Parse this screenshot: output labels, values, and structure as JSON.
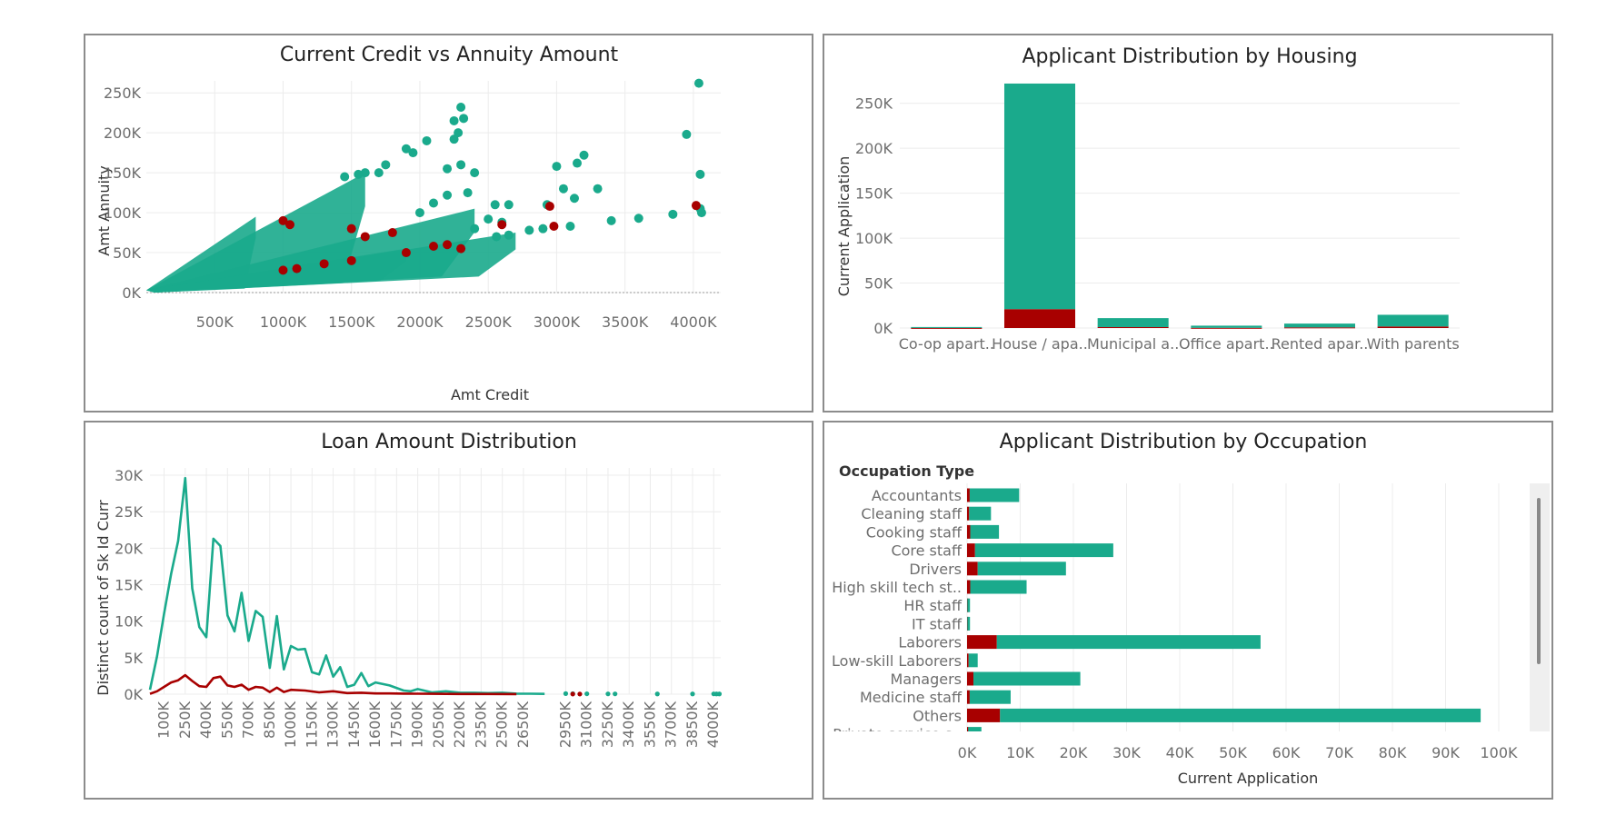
{
  "colors": {
    "primary": "#1aaa8c",
    "secondary": "#a80000",
    "grid": "#ececec",
    "frame": "#8c8c8c",
    "text": "#6e6e6e"
  },
  "chart_data": [
    {
      "id": "scatter",
      "type": "scatter",
      "title": "Current Credit vs Annuity Amount",
      "xlabel": "Amt Credit",
      "ylabel": "Amt Annuity",
      "xlim": [
        0,
        4200000
      ],
      "ylim": [
        0,
        265000
      ],
      "xticks": [
        500000,
        1000000,
        1500000,
        2000000,
        2500000,
        3000000,
        3500000,
        4000000
      ],
      "xtick_labels": [
        "500K",
        "1000K",
        "1500K",
        "2000K",
        "2500K",
        "3000K",
        "3500K",
        "4000K"
      ],
      "yticks": [
        0,
        50000,
        100000,
        150000,
        200000,
        250000
      ],
      "ytick_labels": [
        "0K",
        "50K",
        "100K",
        "150K",
        "200K",
        "250K"
      ],
      "dense_bands": [
        {
          "x_end": 800000,
          "y_end": 95000,
          "y_start": 5000
        },
        {
          "x_end": 1600000,
          "y_end": 150000,
          "y_start": 12000
        },
        {
          "x_end": 2400000,
          "y_end": 105000,
          "y_start": 20000
        },
        {
          "x_end": 2700000,
          "y_end": 75000,
          "y_start": 20000
        },
        {
          "x_end": 1900000,
          "y_end": 55000,
          "y_start": 15000
        }
      ],
      "series": [
        {
          "color": "#1aaa8c",
          "points": [
            [
              4040000,
              262000
            ],
            [
              3950000,
              198000
            ],
            [
              4050000,
              148000
            ],
            [
              4050000,
              105000
            ],
            [
              4060000,
              100000
            ],
            [
              3150000,
              162000
            ],
            [
              3200000,
              172000
            ],
            [
              3000000,
              158000
            ],
            [
              3050000,
              130000
            ],
            [
              3130000,
              118000
            ],
            [
              3300000,
              130000
            ],
            [
              3400000,
              90000
            ],
            [
              3600000,
              93000
            ],
            [
              3850000,
              98000
            ],
            [
              2650000,
              110000
            ],
            [
              2930000,
              110000
            ],
            [
              2250000,
              215000
            ],
            [
              2300000,
              232000
            ],
            [
              2280000,
              200000
            ],
            [
              2320000,
              218000
            ],
            [
              2250000,
              192000
            ],
            [
              1900000,
              180000
            ],
            [
              1950000,
              175000
            ],
            [
              2050000,
              190000
            ],
            [
              1700000,
              150000
            ],
            [
              1750000,
              160000
            ],
            [
              1600000,
              150000
            ],
            [
              1550000,
              148000
            ],
            [
              1450000,
              145000
            ],
            [
              2200000,
              155000
            ],
            [
              2300000,
              160000
            ],
            [
              2400000,
              150000
            ],
            [
              2200000,
              122000
            ],
            [
              2350000,
              125000
            ],
            [
              2550000,
              110000
            ],
            [
              2500000,
              92000
            ],
            [
              2600000,
              88000
            ],
            [
              2800000,
              78000
            ],
            [
              2900000,
              80000
            ],
            [
              3100000,
              83000
            ],
            [
              2560000,
              70000
            ],
            [
              2650000,
              72000
            ],
            [
              2400000,
              80000
            ],
            [
              2000000,
              100000
            ],
            [
              2100000,
              112000
            ]
          ]
        },
        {
          "color": "#a80000",
          "points": [
            [
              2950000,
              108000
            ],
            [
              4020000,
              109000
            ],
            [
              2980000,
              83000
            ],
            [
              2600000,
              85000
            ],
            [
              2100000,
              58000
            ],
            [
              1900000,
              50000
            ],
            [
              1500000,
              40000
            ],
            [
              1300000,
              36000
            ],
            [
              1100000,
              30000
            ],
            [
              1000000,
              28000
            ],
            [
              1800000,
              75000
            ],
            [
              1500000,
              80000
            ],
            [
              1050000,
              85000
            ],
            [
              1000000,
              90000
            ],
            [
              1600000,
              70000
            ],
            [
              2200000,
              60000
            ],
            [
              2300000,
              55000
            ]
          ]
        }
      ]
    },
    {
      "id": "housing",
      "type": "bar",
      "stacked": true,
      "title": "Applicant Distribution by Housing",
      "ylabel": "Current Application",
      "ylim": [
        0,
        275000
      ],
      "yticks": [
        0,
        50000,
        100000,
        150000,
        200000,
        250000
      ],
      "ytick_labels": [
        "0K",
        "50K",
        "100K",
        "150K",
        "200K",
        "250K"
      ],
      "categories": [
        "Co-op apart..",
        "House / apa..",
        "Municipal a..",
        "Office apart..",
        "Rented apar..",
        "With parents"
      ],
      "series": [
        {
          "color": "#a80000",
          "values": [
            100,
            21000,
            1000,
            200,
            700,
            1700
          ]
        },
        {
          "color": "#1aaa8c",
          "values": [
            1000,
            251000,
            10000,
            2400,
            4200,
            13000
          ]
        }
      ]
    },
    {
      "id": "loan",
      "type": "line",
      "title": "Loan Amount Distribution",
      "ylabel": "Distinct count of Sk Id Curr",
      "xlim": [
        0,
        4050000
      ],
      "ylim": [
        0,
        31000
      ],
      "yticks": [
        0,
        5000,
        10000,
        15000,
        20000,
        25000,
        30000
      ],
      "ytick_labels": [
        "0K",
        "5K",
        "10K",
        "15K",
        "20K",
        "25K",
        "30K"
      ],
      "xtick_values": [
        100000,
        250000,
        400000,
        550000,
        700000,
        850000,
        1000000,
        1150000,
        1300000,
        1450000,
        1600000,
        1750000,
        1900000,
        2050000,
        2200000,
        2350000,
        2500000,
        2650000,
        2950000,
        3100000,
        3250000,
        3400000,
        3550000,
        3700000,
        3850000,
        4000000
      ],
      "xtick_labels": [
        "100K",
        "250K",
        "400K",
        "550K",
        "700K",
        "850K",
        "1000K",
        "1150K",
        "1300K",
        "1450K",
        "1600K",
        "1750K",
        "1900K",
        "2050K",
        "2200K",
        "2350K",
        "2500K",
        "2650K",
        "2950K",
        "3100K",
        "3250K",
        "3400K",
        "3550K",
        "3700K",
        "3850K",
        "4000K"
      ],
      "series": [
        {
          "color": "#1aaa8c",
          "x": [
            0,
            50000,
            100000,
            150000,
            200000,
            250000,
            300000,
            350000,
            400000,
            450000,
            500000,
            550000,
            600000,
            650000,
            700000,
            750000,
            800000,
            850000,
            900000,
            950000,
            1000000,
            1050000,
            1100000,
            1150000,
            1200000,
            1250000,
            1300000,
            1350000,
            1400000,
            1450000,
            1500000,
            1550000,
            1600000,
            1700000,
            1800000,
            1850000,
            1900000,
            2000000,
            2100000,
            2200000,
            2300000,
            2400000,
            2500000,
            2600000,
            2700000,
            2800000
          ],
          "values": [
            600,
            5200,
            11000,
            16500,
            21000,
            29600,
            14500,
            9200,
            7800,
            21300,
            20300,
            10800,
            8600,
            13900,
            7300,
            11400,
            10600,
            3600,
            10700,
            3400,
            6600,
            6100,
            6200,
            3000,
            2700,
            5300,
            2400,
            3700,
            1000,
            1300,
            2900,
            1100,
            1600,
            1200,
            500,
            400,
            700,
            250,
            400,
            200,
            200,
            150,
            200,
            80,
            60,
            40
          ]
        },
        {
          "color": "#a80000",
          "x": [
            0,
            50000,
            100000,
            150000,
            200000,
            250000,
            300000,
            350000,
            400000,
            450000,
            500000,
            550000,
            600000,
            650000,
            700000,
            750000,
            800000,
            850000,
            900000,
            950000,
            1000000,
            1100000,
            1200000,
            1300000,
            1400000,
            1500000,
            1600000,
            1700000,
            1800000,
            1900000,
            2000000,
            2200000,
            2400000,
            2600000
          ],
          "values": [
            50,
            400,
            1000,
            1600,
            1900,
            2600,
            1800,
            1100,
            1000,
            2200,
            2400,
            1200,
            1000,
            1300,
            600,
            1000,
            900,
            300,
            900,
            300,
            600,
            500,
            250,
            400,
            150,
            200,
            100,
            100,
            80,
            60,
            50,
            30,
            20,
            10
          ]
        }
      ],
      "sparse_points": [
        {
          "color": "#1aaa8c",
          "x": [
            2950000,
            3000000,
            3100000,
            3250000,
            3300000,
            3600000,
            3850000,
            4000000,
            4020000,
            4040000
          ],
          "values": [
            80,
            60,
            50,
            40,
            40,
            30,
            30,
            40,
            30,
            30
          ]
        },
        {
          "color": "#a80000",
          "x": [
            3000000,
            3050000
          ],
          "values": [
            20,
            20
          ]
        }
      ]
    },
    {
      "id": "occupation",
      "type": "bar",
      "orientation": "horizontal",
      "stacked": true,
      "title": "Applicant Distribution by Occupation",
      "header": "Occupation Type",
      "xlabel": "Current Application",
      "xlim": [
        0,
        100000
      ],
      "xticks": [
        0,
        10000,
        20000,
        30000,
        40000,
        50000,
        60000,
        70000,
        80000,
        90000,
        100000
      ],
      "xtick_labels": [
        "0K",
        "10K",
        "20K",
        "30K",
        "40K",
        "50K",
        "60K",
        "70K",
        "80K",
        "90K",
        "100K"
      ],
      "categories": [
        "Accountants",
        "Cleaning staff",
        "Cooking staff",
        "Core staff",
        "Drivers",
        "High skill tech st..",
        "HR staff",
        "IT staff",
        "Laborers",
        "Low-skill Laborers",
        "Managers",
        "Medicine staff",
        "Others",
        "Private service s.."
      ],
      "series": [
        {
          "color": "#a80000",
          "values": [
            500,
            400,
            600,
            1500,
            2000,
            600,
            50,
            50,
            5600,
            300,
            1200,
            500,
            6200,
            200
          ]
        },
        {
          "color": "#1aaa8c",
          "values": [
            9300,
            4100,
            5400,
            26000,
            16600,
            10600,
            500,
            500,
            49600,
            1700,
            20100,
            7700,
            90400,
            2500
          ]
        }
      ]
    }
  ]
}
